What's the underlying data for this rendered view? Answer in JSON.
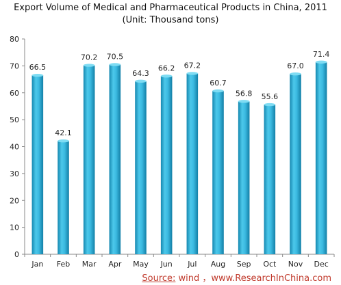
{
  "chart_data": {
    "type": "bar",
    "title": "Export Volume of Medical and Pharmaceutical Products in China, 2011",
    "subtitle": "(Unit: Thousand tons)",
    "categories": [
      "Jan",
      "Feb",
      "Mar",
      "Apr",
      "May",
      "Jun",
      "Jul",
      "Aug",
      "Sep",
      "Oct",
      "Nov",
      "Dec"
    ],
    "values": [
      66.5,
      42.1,
      70.2,
      70.5,
      64.3,
      66.2,
      67.2,
      60.7,
      56.8,
      55.6,
      67.0,
      71.4
    ],
    "value_labels": [
      "66.5",
      "42.1",
      "70.2",
      "70.5",
      "64.3",
      "66.2",
      "67.2",
      "60.7",
      "56.8",
      "55.6",
      "67.0",
      "71.4"
    ],
    "ylim": [
      0,
      80
    ],
    "yticks": [
      0,
      10,
      20,
      30,
      40,
      50,
      60,
      70,
      80
    ],
    "grid": false,
    "bar_color": "#2ba9cf"
  },
  "source": {
    "label": "Source:",
    "text": " wind ，www.ResearchInChina.com"
  }
}
